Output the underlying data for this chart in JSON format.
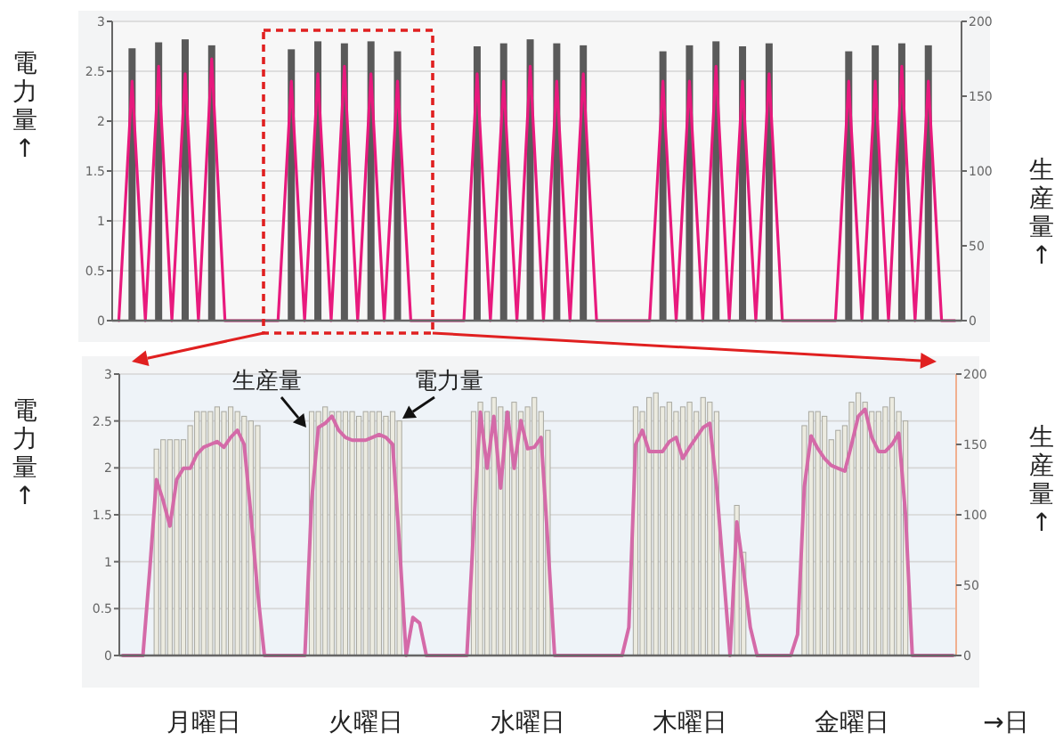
{
  "chart_data": [
    {
      "type": "bar",
      "ylabel": "電力量↑",
      "y2label": "生産量↑",
      "categories": [
        null,
        null,
        null,
        null,
        null,
        null,
        null,
        null,
        null,
        null,
        null,
        null,
        null,
        null,
        null,
        null,
        null,
        null,
        null,
        null,
        null,
        null,
        null,
        null,
        null,
        null,
        null,
        null,
        null,
        null,
        null,
        null,
        null,
        null,
        null,
        null,
        null,
        null,
        null,
        null,
        null,
        null,
        null,
        null,
        null,
        null,
        null,
        null,
        null,
        null,
        null,
        null,
        null,
        null,
        null,
        null,
        null,
        null,
        null,
        null,
        null,
        null,
        null,
        null
      ],
      "ylim": [
        0,
        3
      ],
      "yticks": [
        0,
        0.5,
        1,
        1.5,
        2,
        2.5,
        3
      ],
      "y2lim": [
        0,
        200
      ],
      "y2ticks": [
        0,
        50,
        100,
        150,
        200
      ],
      "grid": "y",
      "series": [
        {
          "color": "#5a5a5a",
          "values": [
            null,
            2.73,
            null,
            2.79,
            null,
            2.82,
            null,
            2.76,
            null,
            null,
            null,
            null,
            null,
            2.72,
            null,
            2.8,
            null,
            2.78,
            null,
            2.8,
            null,
            2.7,
            null,
            null,
            null,
            null,
            null,
            2.75,
            null,
            2.78,
            null,
            2.82,
            null,
            2.78,
            null,
            2.76,
            null,
            null,
            null,
            null,
            null,
            2.7,
            null,
            2.76,
            null,
            2.8,
            null,
            2.75,
            null,
            2.78,
            null,
            null,
            null,
            null,
            null,
            2.7,
            null,
            2.76,
            null,
            2.78,
            null,
            2.76,
            null,
            null
          ]
        },
        {
          "type": "line",
          "axis": "y2",
          "color": "#e8197d",
          "values": [
            0,
            160,
            0,
            170,
            0,
            165,
            0,
            175,
            0,
            0,
            0,
            0,
            0,
            160,
            0,
            165,
            0,
            170,
            0,
            165,
            0,
            160,
            0,
            0,
            0,
            0,
            0,
            165,
            0,
            160,
            0,
            170,
            0,
            160,
            0,
            165,
            0,
            0,
            0,
            0,
            0,
            160,
            0,
            160,
            0,
            170,
            0,
            160,
            0,
            165,
            0,
            0,
            0,
            0,
            0,
            160,
            0,
            160,
            0,
            170,
            0,
            160,
            0,
            0
          ]
        }
      ]
    },
    {
      "type": "bar",
      "ylabel": "電力量↑",
      "y2label": "生産量↑",
      "xlabel": "→日",
      "categories": [
        null,
        null,
        null,
        null,
        null,
        null,
        null,
        null,
        null,
        null,
        null,
        null,
        "月曜日",
        null,
        null,
        null,
        null,
        null,
        null,
        null,
        null,
        null,
        null,
        null,
        null,
        null,
        null,
        null,
        null,
        null,
        null,
        null,
        null,
        null,
        null,
        null,
        "火曜日",
        null,
        null,
        null,
        null,
        null,
        null,
        null,
        null,
        null,
        null,
        null,
        null,
        null,
        null,
        null,
        null,
        null,
        null,
        null,
        null,
        null,
        null,
        null,
        "水曜日",
        null,
        null,
        null,
        null,
        null,
        null,
        null,
        null,
        null,
        null,
        null,
        null,
        null,
        null,
        null,
        null,
        null,
        null,
        null,
        null,
        null,
        null,
        null,
        "木曜日",
        null,
        null,
        null,
        null,
        null,
        null,
        null,
        null,
        null,
        null,
        null,
        null,
        null,
        null,
        null,
        null,
        null,
        null,
        null,
        null,
        null,
        null,
        null,
        "金曜日",
        null,
        null,
        null,
        null,
        null,
        null,
        null,
        null,
        null,
        null,
        null,
        null,
        null,
        null,
        null
      ],
      "ylim": [
        0,
        3
      ],
      "yticks": [
        0,
        0.5,
        1,
        1.5,
        2,
        2.5,
        3
      ],
      "y2lim": [
        0,
        200
      ],
      "y2ticks": [
        0,
        50,
        100,
        150,
        200
      ],
      "grid": "y",
      "annotations": [
        "生産量",
        "電力量"
      ],
      "series": [
        {
          "color": "#ecebe0",
          "values": [
            null,
            null,
            null,
            null,
            null,
            2.2,
            2.3,
            2.3,
            2.3,
            2.3,
            2.45,
            2.6,
            2.6,
            2.6,
            2.65,
            2.6,
            2.65,
            2.6,
            2.55,
            2.5,
            2.45,
            null,
            null,
            null,
            null,
            null,
            null,
            null,
            2.6,
            2.6,
            2.65,
            2.6,
            2.6,
            2.6,
            2.6,
            2.55,
            2.6,
            2.6,
            2.6,
            2.55,
            2.6,
            2.5,
            null,
            null,
            null,
            null,
            null,
            null,
            null,
            null,
            null,
            null,
            2.6,
            2.7,
            2.6,
            2.75,
            2.65,
            2.6,
            2.7,
            2.6,
            2.65,
            2.75,
            2.6,
            2.4,
            null,
            null,
            null,
            null,
            null,
            null,
            null,
            null,
            null,
            null,
            null,
            null,
            2.65,
            2.6,
            2.75,
            2.8,
            2.65,
            2.7,
            2.6,
            2.65,
            2.7,
            2.6,
            2.75,
            2.7,
            2.6,
            null,
            null,
            1.6,
            1.1,
            null,
            null,
            null,
            null,
            null,
            null,
            null,
            null,
            2.45,
            2.6,
            2.6,
            2.55,
            2.3,
            2.4,
            2.45,
            2.7,
            2.8,
            2.7,
            2.6,
            2.6,
            2.65,
            2.75,
            2.6,
            2.5,
            null,
            null,
            null,
            null,
            null,
            null,
            null
          ]
        },
        {
          "type": "line",
          "axis": "y2",
          "color": "#d46aa8",
          "values": [
            0,
            0,
            0,
            0,
            60,
            125,
            110,
            92,
            125,
            133,
            133,
            143,
            148,
            150,
            152,
            148,
            155,
            160,
            150,
            100,
            45,
            0,
            0,
            0,
            0,
            0,
            0,
            0,
            110,
            162,
            165,
            170,
            160,
            155,
            153,
            153,
            153,
            155,
            157,
            155,
            150,
            80,
            0,
            27,
            23,
            0,
            0,
            0,
            0,
            0,
            0,
            0,
            90,
            173,
            133,
            170,
            119,
            173,
            133,
            167,
            147,
            148,
            155,
            80,
            0,
            0,
            0,
            0,
            0,
            0,
            0,
            0,
            0,
            0,
            0,
            20,
            150,
            160,
            145,
            145,
            145,
            152,
            155,
            140,
            148,
            155,
            162,
            165,
            120,
            60,
            0,
            95,
            60,
            20,
            0,
            0,
            0,
            0,
            0,
            0,
            15,
            120,
            156,
            147,
            140,
            135,
            133,
            131,
            150,
            170,
            175,
            155,
            145,
            145,
            150,
            158,
            100,
            0,
            0,
            0,
            0,
            0,
            0,
            0
          ]
        }
      ]
    }
  ]
}
